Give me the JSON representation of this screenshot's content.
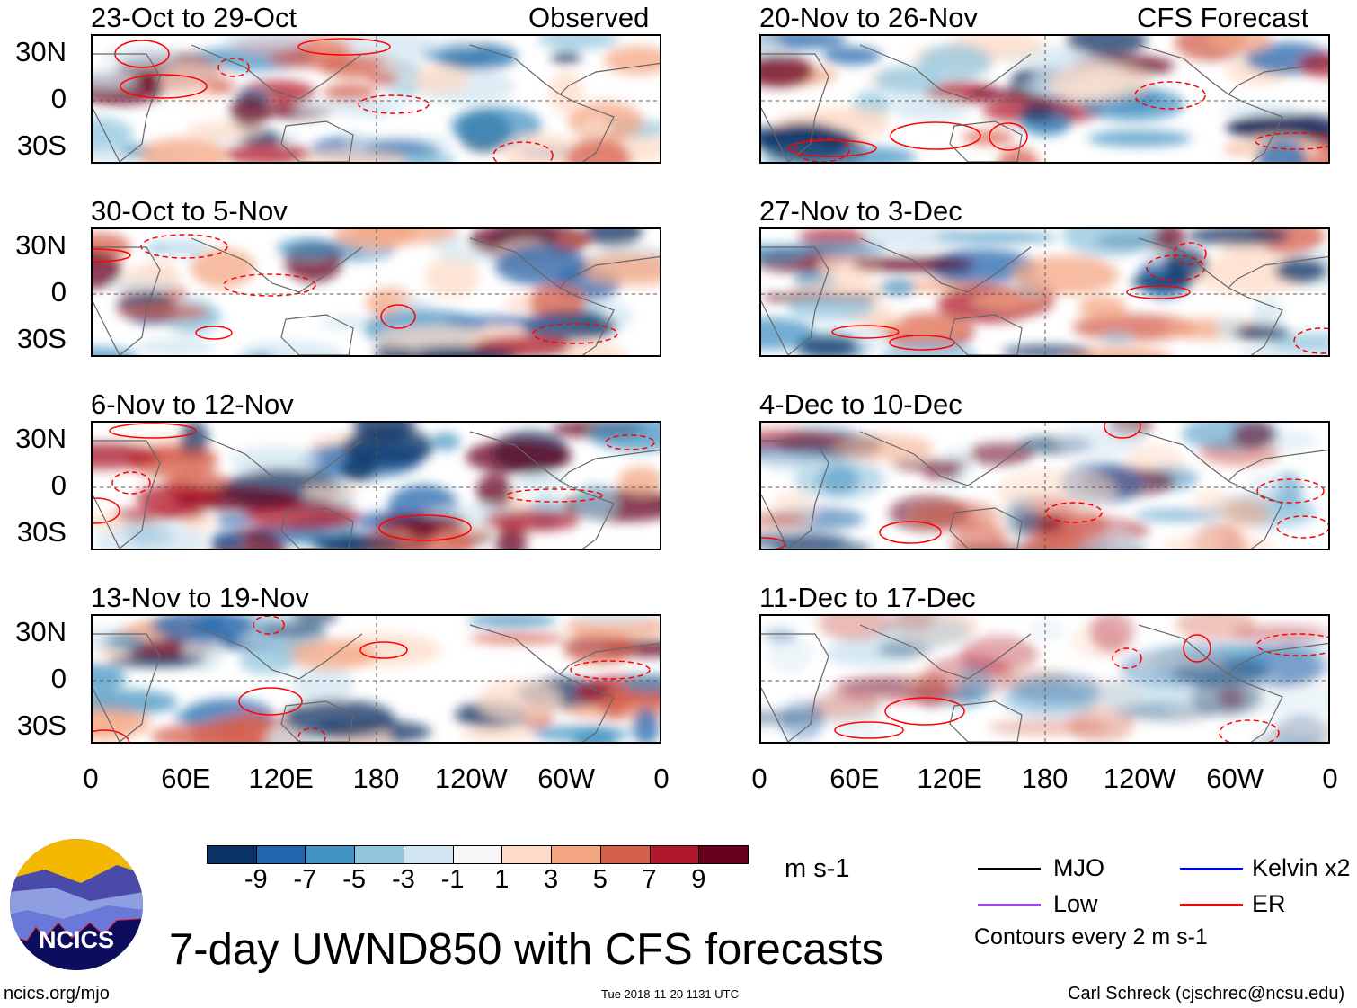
{
  "figure_title": "7-day UWND850 with CFS forecasts",
  "left_column_label": "Observed",
  "right_column_label": "CFS Forecast",
  "panels_left": [
    "23-Oct to 29-Oct",
    "30-Oct to 5-Nov",
    "6-Nov to 12-Nov",
    "13-Nov to 19-Nov"
  ],
  "panels_right": [
    "20-Nov to 26-Nov",
    "27-Nov to 3-Dec",
    "4-Dec to 10-Dec",
    "11-Dec to 17-Dec"
  ],
  "lat_labels": [
    "30N",
    "0",
    "30S"
  ],
  "lon_labels": [
    "0",
    "60E",
    "120E",
    "180",
    "120W",
    "60W",
    "0"
  ],
  "colorbar": {
    "unit": "m s-1",
    "colors": [
      "#0a3264",
      "#2166ac",
      "#4393c3",
      "#92c5de",
      "#d1e5f0",
      "#f7f7f7",
      "#fddbc7",
      "#f4a582",
      "#d6604d",
      "#b2182b",
      "#67001f"
    ],
    "labels": [
      "-9",
      "-7",
      "-5",
      "-3",
      "-1",
      "1",
      "3",
      "5",
      "7",
      "9"
    ]
  },
  "legend": {
    "items": [
      {
        "label": "MJO",
        "color": "#000000"
      },
      {
        "label": "Kelvin x2",
        "color": "#0000ff"
      },
      {
        "label": "Low",
        "color": "#a040ff"
      },
      {
        "label": "ER",
        "color": "#ff0000"
      }
    ],
    "note": "Contours every 2 m s-1"
  },
  "logo_text": "NCICS",
  "footer": {
    "url": "ncics.org/mjo",
    "timestamp": "Tue 2018-11-20 1131 UTC",
    "author": "Carl Schreck (cjschrec@ncsu.edu)"
  }
}
